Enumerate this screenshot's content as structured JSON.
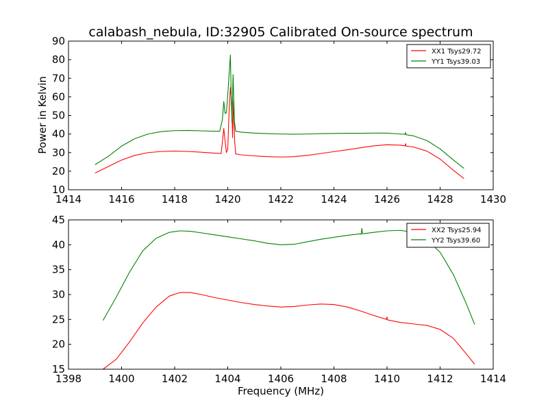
{
  "chart_data": [
    {
      "type": "line",
      "title": "calabash_nebula, ID:32905 Calibrated On-source spectrum",
      "xlabel": "",
      "ylabel": "Power in Kelvin",
      "xlim": [
        1414,
        1430
      ],
      "ylim": [
        10,
        90
      ],
      "xticks": [
        1414,
        1416,
        1418,
        1420,
        1422,
        1424,
        1426,
        1428,
        1430
      ],
      "yticks": [
        10,
        20,
        30,
        40,
        50,
        60,
        70,
        80,
        90
      ],
      "legend_position": "top-right",
      "series": [
        {
          "name": "XX1 Tsys29.72",
          "color": "#ff0000",
          "points": [
            [
              1415.0,
              19.0
            ],
            [
              1415.5,
              22.5
            ],
            [
              1416.0,
              26.0
            ],
            [
              1416.5,
              28.5
            ],
            [
              1417.0,
              30.0
            ],
            [
              1417.5,
              30.6
            ],
            [
              1418.0,
              30.8
            ],
            [
              1418.5,
              30.6
            ],
            [
              1419.0,
              30.2
            ],
            [
              1419.5,
              29.7
            ],
            [
              1419.75,
              29.5
            ],
            [
              1419.8,
              36.0
            ],
            [
              1419.85,
              43.0
            ],
            [
              1419.9,
              36.0
            ],
            [
              1419.95,
              30.0
            ],
            [
              1420.0,
              32.0
            ],
            [
              1420.05,
              52.0
            ],
            [
              1420.1,
              65.0
            ],
            [
              1420.15,
              57.0
            ],
            [
              1420.18,
              38.0
            ],
            [
              1420.22,
              58.0
            ],
            [
              1420.26,
              36.0
            ],
            [
              1420.3,
              29.3
            ],
            [
              1420.5,
              28.8
            ],
            [
              1421.0,
              28.2
            ],
            [
              1421.5,
              27.8
            ],
            [
              1422.0,
              27.6
            ],
            [
              1422.5,
              27.8
            ],
            [
              1423.0,
              28.5
            ],
            [
              1423.5,
              29.5
            ],
            [
              1424.0,
              30.5
            ],
            [
              1424.5,
              31.5
            ],
            [
              1425.0,
              32.6
            ],
            [
              1425.5,
              33.6
            ],
            [
              1426.0,
              34.2
            ],
            [
              1426.5,
              34.0
            ],
            [
              1426.68,
              33.6
            ],
            [
              1426.7,
              34.8
            ],
            [
              1426.72,
              33.5
            ],
            [
              1427.0,
              33.0
            ],
            [
              1427.5,
              30.8
            ],
            [
              1428.0,
              26.5
            ],
            [
              1428.5,
              20.5
            ],
            [
              1428.9,
              16.0
            ]
          ]
        },
        {
          "name": "YY1 Tsys39.03",
          "color": "#008000",
          "points": [
            [
              1415.0,
              23.5
            ],
            [
              1415.5,
              28.0
            ],
            [
              1416.0,
              33.5
            ],
            [
              1416.5,
              37.5
            ],
            [
              1417.0,
              40.0
            ],
            [
              1417.5,
              41.3
            ],
            [
              1418.0,
              41.8
            ],
            [
              1418.5,
              41.9
            ],
            [
              1419.0,
              41.7
            ],
            [
              1419.5,
              41.5
            ],
            [
              1419.7,
              41.5
            ],
            [
              1419.8,
              48.0
            ],
            [
              1419.85,
              57.5
            ],
            [
              1419.9,
              51.0
            ],
            [
              1419.95,
              51.5
            ],
            [
              1420.0,
              61.0
            ],
            [
              1420.05,
              72.0
            ],
            [
              1420.1,
              82.5
            ],
            [
              1420.13,
              60.0
            ],
            [
              1420.16,
              46.0
            ],
            [
              1420.2,
              72.0
            ],
            [
              1420.25,
              47.0
            ],
            [
              1420.3,
              41.5
            ],
            [
              1420.5,
              41.0
            ],
            [
              1421.0,
              40.5
            ],
            [
              1421.5,
              40.2
            ],
            [
              1422.0,
              40.0
            ],
            [
              1422.5,
              39.9
            ],
            [
              1423.0,
              40.0
            ],
            [
              1423.5,
              40.2
            ],
            [
              1424.0,
              40.3
            ],
            [
              1424.5,
              40.4
            ],
            [
              1425.0,
              40.4
            ],
            [
              1425.5,
              40.5
            ],
            [
              1426.0,
              40.5
            ],
            [
              1426.5,
              40.0
            ],
            [
              1426.68,
              39.8
            ],
            [
              1426.7,
              40.8
            ],
            [
              1426.72,
              39.6
            ],
            [
              1427.0,
              39.0
            ],
            [
              1427.5,
              36.5
            ],
            [
              1428.0,
              32.0
            ],
            [
              1428.5,
              26.0
            ],
            [
              1428.9,
              21.5
            ]
          ]
        }
      ]
    },
    {
      "type": "line",
      "title": "",
      "xlabel": "Frequency (MHz)",
      "ylabel": "",
      "xlim": [
        1398,
        1414
      ],
      "ylim": [
        15,
        45
      ],
      "xticks": [
        1398,
        1400,
        1402,
        1404,
        1406,
        1408,
        1410,
        1412,
        1414
      ],
      "yticks": [
        15,
        20,
        25,
        30,
        35,
        40,
        45
      ],
      "legend_position": "top-right",
      "series": [
        {
          "name": "XX2 Tsys25.94",
          "color": "#ff0000",
          "points": [
            [
              1399.3,
              15.0
            ],
            [
              1399.8,
              17.0
            ],
            [
              1400.3,
              20.5
            ],
            [
              1400.8,
              24.3
            ],
            [
              1401.3,
              27.5
            ],
            [
              1401.8,
              29.7
            ],
            [
              1402.2,
              30.4
            ],
            [
              1402.6,
              30.4
            ],
            [
              1403.0,
              30.0
            ],
            [
              1403.5,
              29.4
            ],
            [
              1404.0,
              28.9
            ],
            [
              1404.5,
              28.4
            ],
            [
              1405.0,
              28.0
            ],
            [
              1405.5,
              27.7
            ],
            [
              1406.0,
              27.5
            ],
            [
              1406.5,
              27.6
            ],
            [
              1407.0,
              27.9
            ],
            [
              1407.5,
              28.1
            ],
            [
              1408.0,
              28.0
            ],
            [
              1408.5,
              27.5
            ],
            [
              1409.0,
              26.7
            ],
            [
              1409.5,
              25.8
            ],
            [
              1409.98,
              25.0
            ],
            [
              1410.0,
              25.5
            ],
            [
              1410.02,
              24.9
            ],
            [
              1410.5,
              24.4
            ],
            [
              1411.0,
              24.1
            ],
            [
              1411.5,
              23.8
            ],
            [
              1412.0,
              23.0
            ],
            [
              1412.5,
              21.2
            ],
            [
              1413.0,
              18.0
            ],
            [
              1413.3,
              16.0
            ]
          ]
        },
        {
          "name": "YY2 Tsys39.60",
          "color": "#008000",
          "points": [
            [
              1399.3,
              24.8
            ],
            [
              1399.8,
              29.5
            ],
            [
              1400.3,
              34.5
            ],
            [
              1400.8,
              38.8
            ],
            [
              1401.3,
              41.3
            ],
            [
              1401.8,
              42.5
            ],
            [
              1402.2,
              42.8
            ],
            [
              1402.6,
              42.7
            ],
            [
              1403.0,
              42.4
            ],
            [
              1403.5,
              42.0
            ],
            [
              1404.0,
              41.6
            ],
            [
              1404.5,
              41.2
            ],
            [
              1405.0,
              40.8
            ],
            [
              1405.5,
              40.3
            ],
            [
              1406.0,
              40.0
            ],
            [
              1406.5,
              40.1
            ],
            [
              1407.0,
              40.6
            ],
            [
              1407.5,
              41.1
            ],
            [
              1408.0,
              41.5
            ],
            [
              1408.5,
              41.9
            ],
            [
              1409.0,
              42.2
            ],
            [
              1409.03,
              42.1
            ],
            [
              1409.05,
              43.3
            ],
            [
              1409.08,
              42.2
            ],
            [
              1409.5,
              42.5
            ],
            [
              1410.0,
              42.8
            ],
            [
              1410.5,
              42.9
            ],
            [
              1411.0,
              42.5
            ],
            [
              1411.5,
              41.0
            ],
            [
              1412.0,
              38.5
            ],
            [
              1412.5,
              34.0
            ],
            [
              1413.0,
              28.0
            ],
            [
              1413.3,
              24.0
            ]
          ]
        }
      ]
    }
  ]
}
